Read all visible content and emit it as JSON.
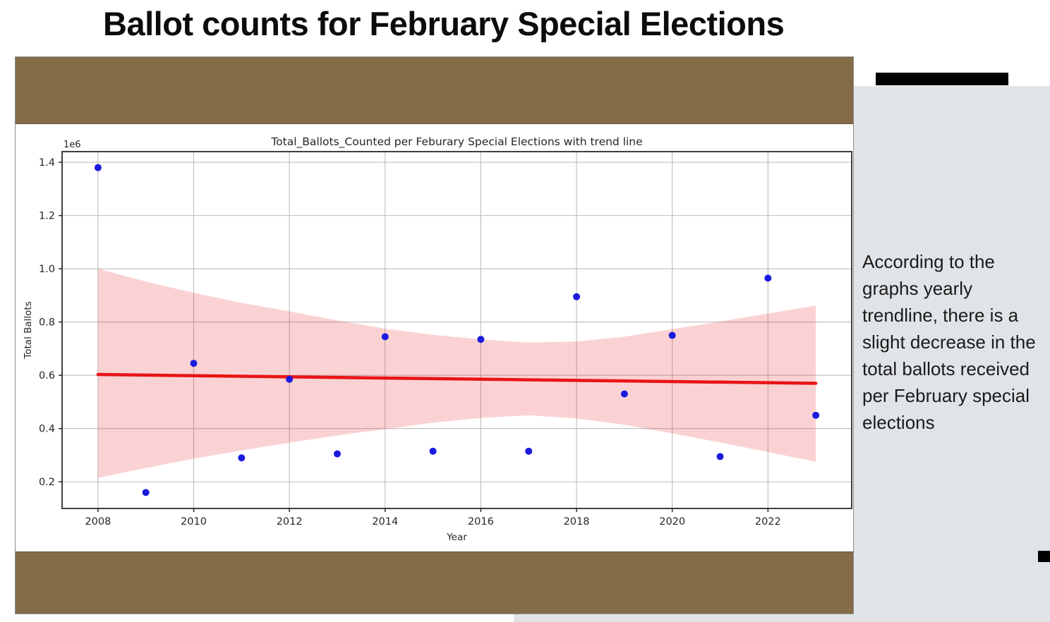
{
  "slide": {
    "title": "Ballot counts for February Special Elections",
    "annotation": "According to the graphs yearly trendline, there is a slight decrease in the total ballots received per February special elections"
  },
  "decor": {
    "banner_brown": "#846C49",
    "panel_gray": "#E0E4E7",
    "redaction_black": "#000000"
  },
  "chart_data": {
    "type": "scatter",
    "title": "Total_Ballots_Counted per Feburary Special Elections with trend line",
    "xlabel": "Year",
    "ylabel": "Total Ballots",
    "y_scale_label": "1e6",
    "x": [
      2008,
      2009,
      2010,
      2011,
      2012,
      2013,
      2014,
      2015,
      2016,
      2017,
      2018,
      2019,
      2020,
      2021,
      2022,
      2023
    ],
    "y_millions": [
      1.38,
      0.16,
      0.645,
      0.29,
      0.585,
      0.305,
      0.745,
      0.315,
      0.735,
      0.315,
      0.895,
      0.53,
      0.75,
      0.295,
      0.965,
      0.45
    ],
    "trend_line": {
      "x": [
        2008,
        2023
      ],
      "y_millions": [
        0.603,
        0.57
      ]
    },
    "ci_band": {
      "x": [
        2008,
        2009,
        2010,
        2011,
        2012,
        2013,
        2014,
        2015,
        2016,
        2017,
        2018,
        2019,
        2020,
        2021,
        2022,
        2023
      ],
      "top": [
        1.0,
        0.952,
        0.91,
        0.872,
        0.84,
        0.806,
        0.775,
        0.752,
        0.735,
        0.723,
        0.727,
        0.745,
        0.773,
        0.802,
        0.832,
        0.862
      ],
      "bottom": [
        0.215,
        0.252,
        0.287,
        0.318,
        0.347,
        0.374,
        0.398,
        0.422,
        0.44,
        0.45,
        0.438,
        0.414,
        0.382,
        0.348,
        0.312,
        0.275
      ]
    },
    "xlim": [
      2007.25,
      2023.75
    ],
    "ylim": [
      0.1,
      1.44
    ],
    "xticks": [
      2008,
      2010,
      2012,
      2014,
      2016,
      2018,
      2020,
      2022
    ],
    "yticks": [
      0.2,
      0.4,
      0.6,
      0.8,
      1.0,
      1.2,
      1.4
    ],
    "grid": true,
    "legend": "none",
    "colors": {
      "point": "#1b1be0",
      "trend": "#e81416",
      "band": "#ed1c24",
      "grid": "#bcbcbc",
      "spine": "#2b2b2b",
      "text": "#262626"
    }
  }
}
